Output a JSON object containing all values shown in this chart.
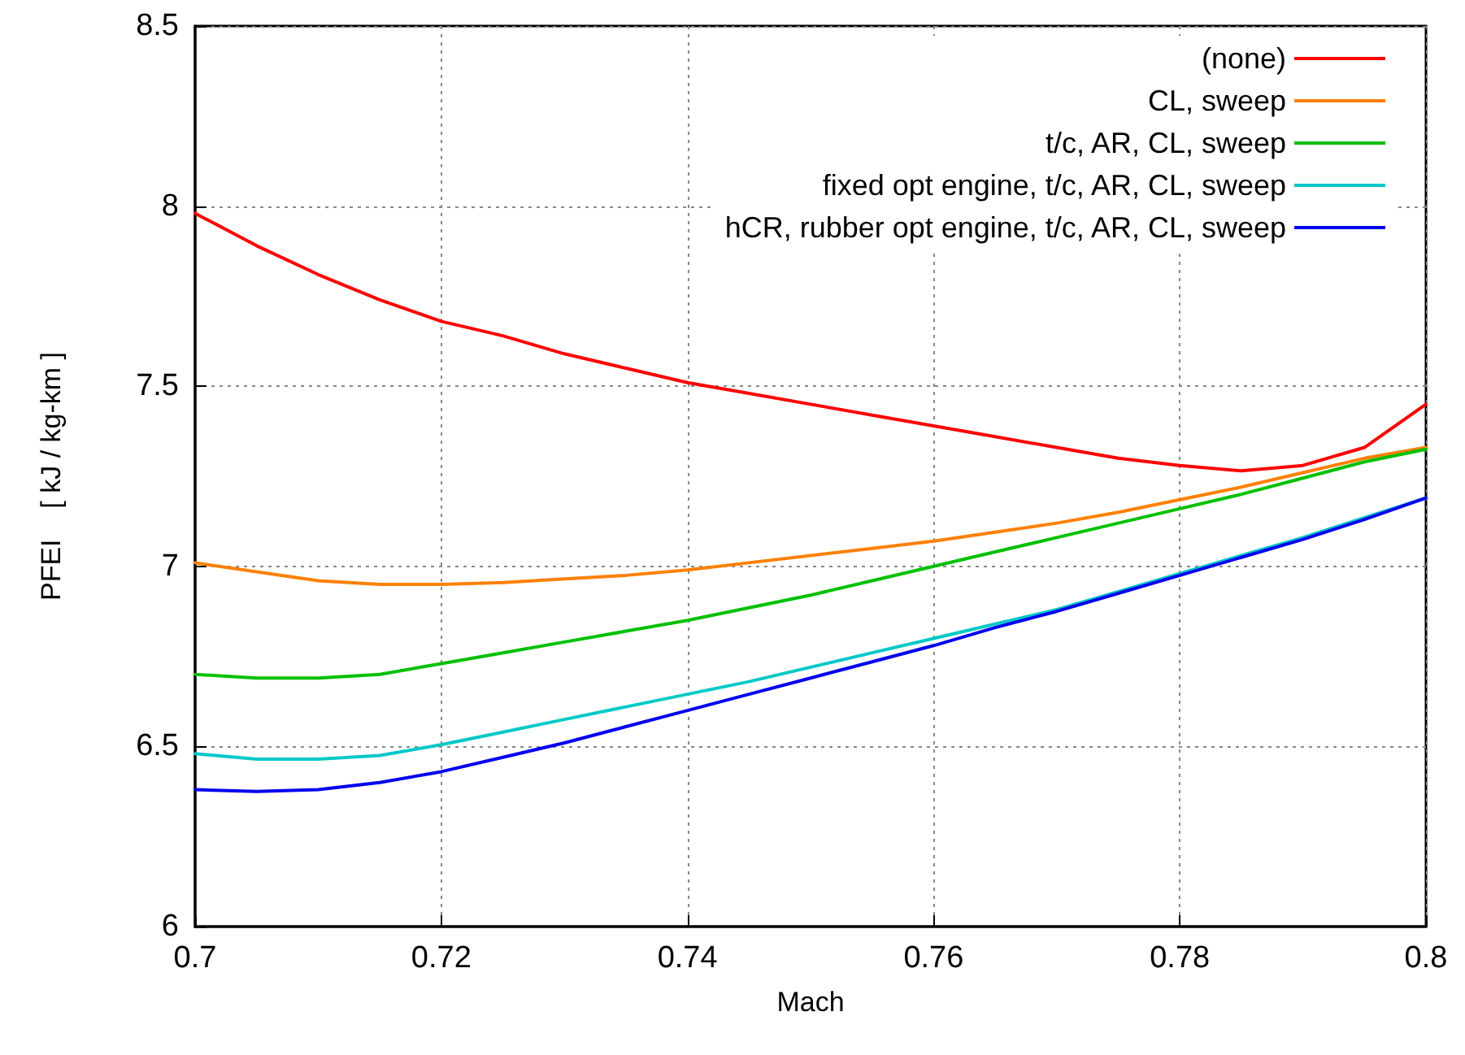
{
  "chart_data": {
    "type": "line",
    "xlabel": "Mach",
    "ylabel": "PFEI    [ kJ / kg-km ]",
    "x": [
      0.7,
      0.705,
      0.71,
      0.715,
      0.72,
      0.725,
      0.73,
      0.735,
      0.74,
      0.745,
      0.75,
      0.755,
      0.76,
      0.765,
      0.77,
      0.775,
      0.78,
      0.785,
      0.79,
      0.795,
      0.8
    ],
    "series": [
      {
        "name": "(none)",
        "color": "#ff0000",
        "values": [
          7.98,
          7.89,
          7.81,
          7.74,
          7.68,
          7.64,
          7.59,
          7.55,
          7.51,
          7.48,
          7.45,
          7.42,
          7.39,
          7.36,
          7.33,
          7.3,
          7.28,
          7.265,
          7.28,
          7.33,
          7.45
        ]
      },
      {
        "name": "CL, sweep",
        "color": "#ff8000",
        "values": [
          7.01,
          6.985,
          6.96,
          6.95,
          6.95,
          6.955,
          6.965,
          6.975,
          6.99,
          7.01,
          7.03,
          7.05,
          7.07,
          7.095,
          7.12,
          7.15,
          7.185,
          7.22,
          7.26,
          7.3,
          7.33
        ]
      },
      {
        "name": "t/c, AR, CL, sweep",
        "color": "#00c000",
        "values": [
          6.7,
          6.69,
          6.69,
          6.7,
          6.73,
          6.76,
          6.79,
          6.82,
          6.85,
          6.885,
          6.92,
          6.96,
          7.0,
          7.04,
          7.08,
          7.12,
          7.16,
          7.2,
          7.245,
          7.29,
          7.325
        ]
      },
      {
        "name": "fixed opt engine, t/c, AR, CL, sweep",
        "color": "#00c8c8",
        "values": [
          6.48,
          6.465,
          6.465,
          6.475,
          6.505,
          6.54,
          6.575,
          6.61,
          6.645,
          6.68,
          6.72,
          6.76,
          6.8,
          6.84,
          6.88,
          6.93,
          6.98,
          7.03,
          7.08,
          7.135,
          7.19
        ]
      },
      {
        "name": "hCR, rubber opt engine, t/c, AR, CL, sweep",
        "color": "#0000ee",
        "values": [
          6.38,
          6.375,
          6.38,
          6.4,
          6.43,
          6.47,
          6.51,
          6.555,
          6.6,
          6.645,
          6.69,
          6.735,
          6.78,
          6.83,
          6.875,
          6.925,
          6.975,
          7.025,
          7.075,
          7.13,
          7.19
        ]
      }
    ],
    "xlim": [
      0.7,
      0.8
    ],
    "xticks": [
      0.7,
      0.72,
      0.74,
      0.76,
      0.78,
      0.8
    ],
    "ylim": [
      6,
      8.5
    ],
    "yticks": [
      6,
      6.5,
      7,
      7.5,
      8,
      8.5
    ],
    "grid": true,
    "legend": "top right",
    "marker": "none",
    "line_style": "solid"
  }
}
